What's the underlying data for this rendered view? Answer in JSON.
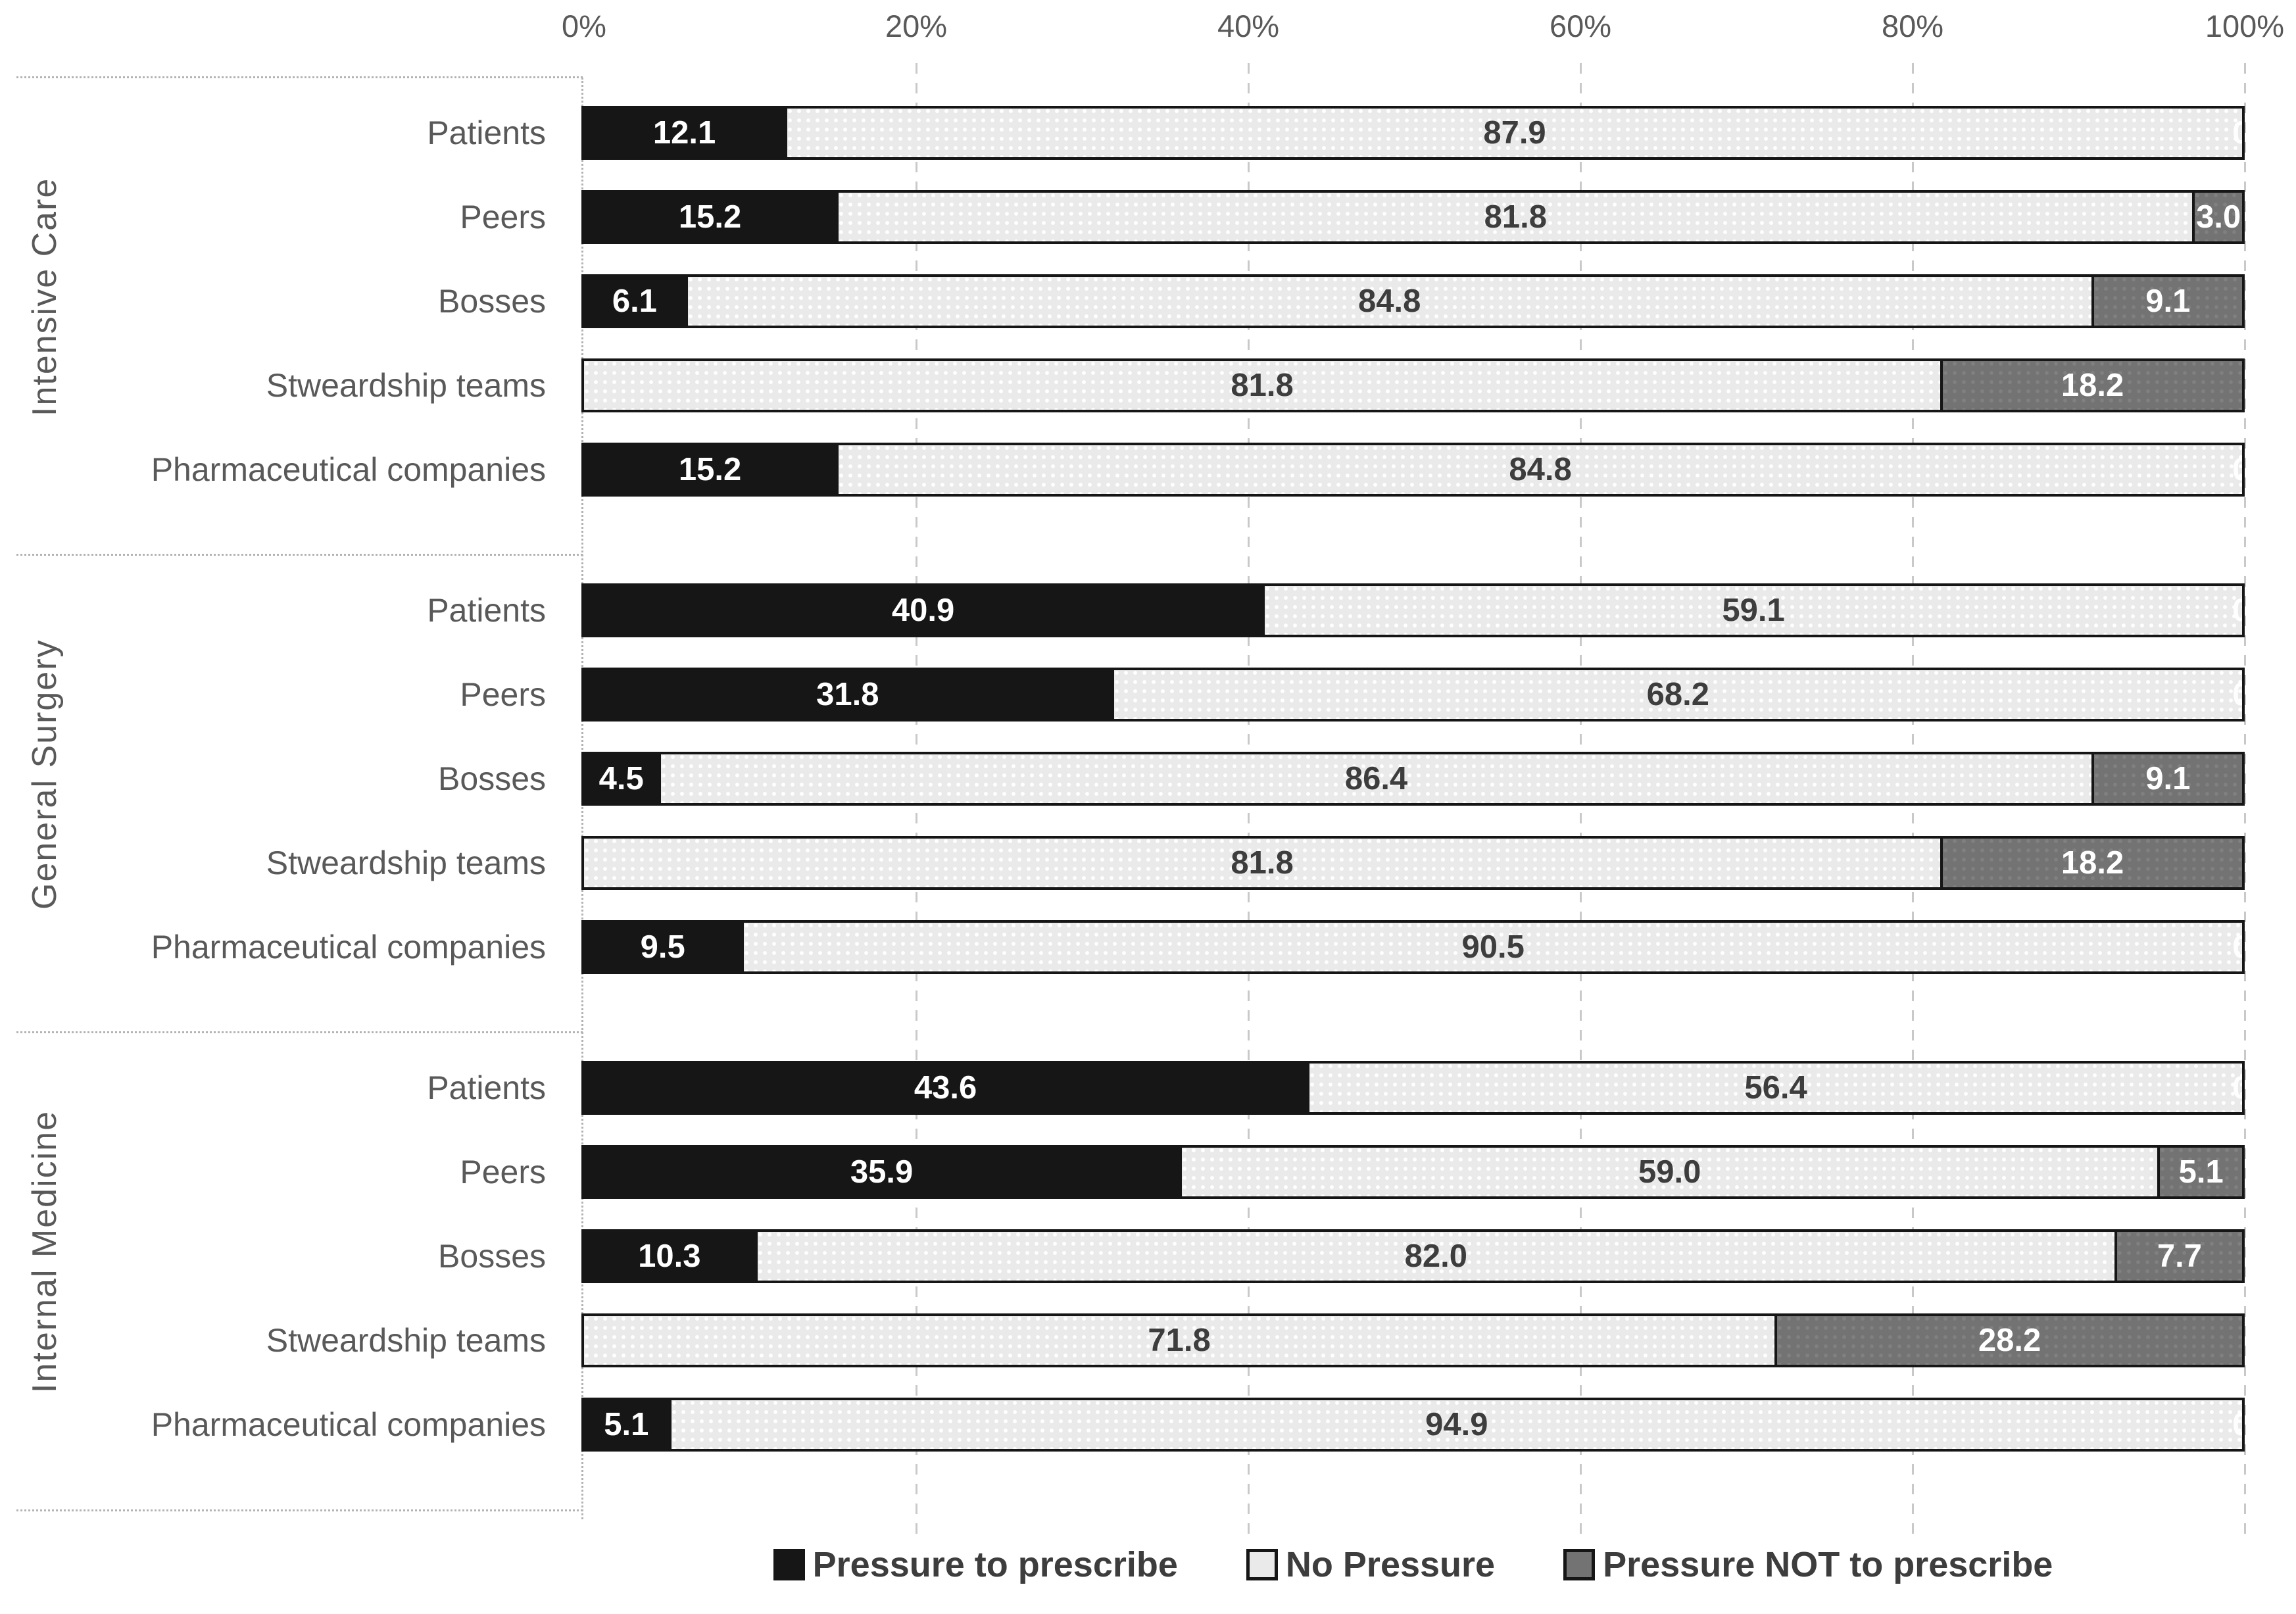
{
  "chart_data": {
    "type": "bar",
    "orientation": "horizontal-stacked",
    "title": "",
    "x_axis": {
      "position": "top",
      "min": 0,
      "max": 100,
      "ticks": [
        "0%",
        "20%",
        "40%",
        "60%",
        "80%",
        "100%"
      ],
      "grid": "dashed-vertical"
    },
    "series": [
      {
        "name": "Pressure to prescribe",
        "color": "#161616",
        "label_color": "#ffffff"
      },
      {
        "name": "No Pressure",
        "color": "#eaeaea",
        "label_color": "#3d3d3d"
      },
      {
        "name": "Pressure NOT to prescribe",
        "color": "#737373",
        "label_color": "#ffffff"
      }
    ],
    "groups": [
      {
        "label": "Intensive Care",
        "rows": [
          {
            "category": "Patients",
            "values": [
              12.1,
              87.9,
              0
            ],
            "labels": [
              "12.1",
              "87.9",
              "0"
            ]
          },
          {
            "category": "Peers",
            "values": [
              15.2,
              81.8,
              3.0
            ],
            "labels": [
              "15.2",
              "81.8",
              "3.0"
            ]
          },
          {
            "category": "Bosses",
            "values": [
              6.1,
              84.8,
              9.1
            ],
            "labels": [
              "6.1",
              "84.8",
              "9.1"
            ]
          },
          {
            "category": "Stweardship teams",
            "values": [
              0,
              81.8,
              18.2
            ],
            "labels": [
              "0",
              "81.8",
              "18.2"
            ]
          },
          {
            "category": "Pharmaceutical companies",
            "values": [
              15.2,
              84.8,
              0
            ],
            "labels": [
              "15.2",
              "84.8",
              "0"
            ]
          }
        ]
      },
      {
        "label": "General Surgery",
        "rows": [
          {
            "category": "Patients",
            "values": [
              40.9,
              59.1,
              0
            ],
            "labels": [
              "40.9",
              "59.1",
              "0"
            ]
          },
          {
            "category": "Peers",
            "values": [
              31.8,
              68.2,
              0
            ],
            "labels": [
              "31.8",
              "68.2",
              "0"
            ]
          },
          {
            "category": "Bosses",
            "values": [
              4.5,
              86.4,
              9.1
            ],
            "labels": [
              "4.5",
              "86.4",
              "9.1"
            ]
          },
          {
            "category": "Stweardship teams",
            "values": [
              0,
              81.8,
              18.2
            ],
            "labels": [
              "0",
              "81.8",
              "18.2"
            ]
          },
          {
            "category": "Pharmaceutical companies",
            "values": [
              9.5,
              90.5,
              0
            ],
            "labels": [
              "9.5",
              "90.5",
              "0"
            ]
          }
        ]
      },
      {
        "label": "Internal Medicine",
        "rows": [
          {
            "category": "Patients",
            "values": [
              43.6,
              56.4,
              0
            ],
            "labels": [
              "43.6",
              "56.4",
              "0"
            ]
          },
          {
            "category": "Peers",
            "values": [
              35.9,
              59.0,
              5.1
            ],
            "labels": [
              "35.9",
              "59.0",
              "5.1"
            ]
          },
          {
            "category": "Bosses",
            "values": [
              10.3,
              82.0,
              7.7
            ],
            "labels": [
              "10.3",
              "82.0",
              "7.7"
            ]
          },
          {
            "category": "Stweardship teams",
            "values": [
              0,
              71.8,
              28.2
            ],
            "labels": [
              "0",
              "71.8",
              "28.2"
            ]
          },
          {
            "category": "Pharmaceutical companies",
            "values": [
              5.1,
              94.9,
              0
            ],
            "labels": [
              "5.1",
              "94.9",
              "0"
            ]
          }
        ]
      }
    ],
    "legend": {
      "position": "bottom",
      "items": [
        "Pressure to prescribe",
        "No Pressure",
        "Pressure NOT to prescribe"
      ]
    }
  }
}
